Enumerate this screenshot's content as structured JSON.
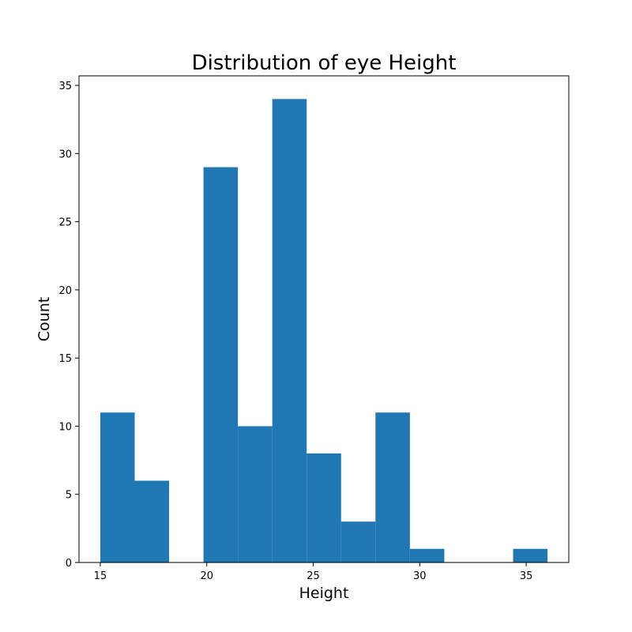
{
  "chart_data": {
    "type": "bar",
    "title": "Distribution of eye Height",
    "xlabel": "Height",
    "ylabel": "Count",
    "bar_color": "#1f77b4",
    "xlim": [
      14,
      37
    ],
    "ylim": [
      0,
      35.7
    ],
    "xticks": [
      15,
      20,
      25,
      30,
      35
    ],
    "yticks": [
      0,
      5,
      10,
      15,
      20,
      25,
      30,
      35
    ],
    "bin_edges": [
      15.0,
      16.615,
      18.231,
      19.846,
      21.462,
      23.077,
      24.692,
      26.308,
      27.923,
      29.538,
      31.154,
      32.769,
      34.385,
      36.0
    ],
    "counts": [
      11,
      6,
      0,
      29,
      10,
      34,
      8,
      3,
      11,
      1,
      0,
      0,
      1
    ],
    "grid": false
  }
}
